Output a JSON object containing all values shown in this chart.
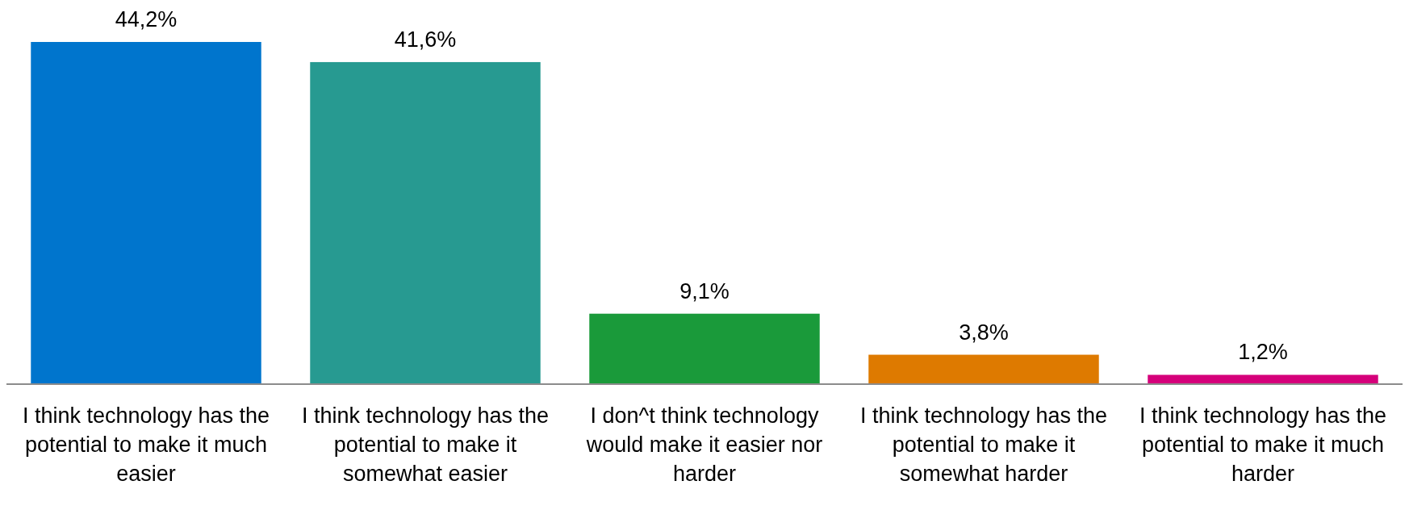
{
  "chart_data": {
    "type": "bar",
    "categories": [
      "I think technology has the potential to make it much easier",
      "I think technology has the potential to make it somewhat easier",
      "I don^t think technology would make it easier nor harder",
      "I think technology has the potential to make it somewhat harder",
      "I think technology has the potential to make it much harder"
    ],
    "values": [
      44.2,
      41.6,
      9.1,
      3.8,
      1.2
    ],
    "colors": [
      "#0075cd",
      "#279a91",
      "#1a9a3a",
      "#de7a00",
      "#d5007a"
    ],
    "value_labels": [
      "44,2%",
      "41,6%",
      "9,1%",
      "3,8%",
      "1,2%"
    ]
  }
}
